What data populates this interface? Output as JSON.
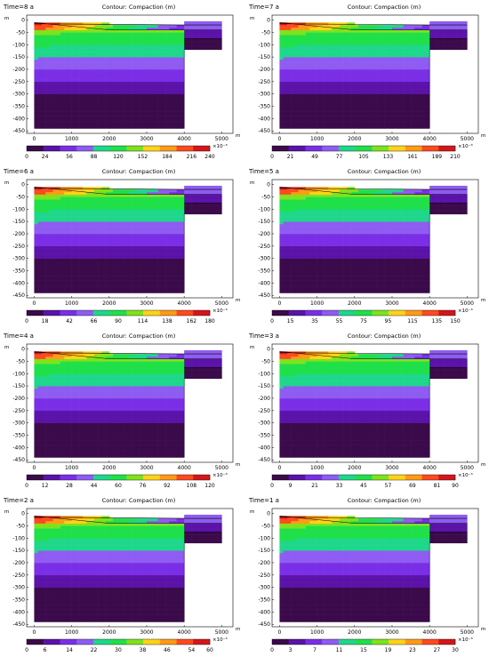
{
  "chart_data": [
    {
      "type": "heatmap",
      "time_label": "Time=8 a",
      "title": "Contour: Compaction (m)",
      "xlabel": "m",
      "ylabel": "m",
      "x_ticks": [
        "0",
        "1000",
        "2000",
        "3000",
        "4000",
        "5000"
      ],
      "y_ticks": [
        "-450",
        "-400",
        "-350",
        "-300",
        "-250",
        "-200",
        "-150",
        "-100",
        "-50",
        "0"
      ],
      "xlim": [
        -200,
        5300
      ],
      "ylim": [
        -460,
        20
      ],
      "colorbar_ticks": [
        "0",
        "24",
        "56",
        "88",
        "120",
        "152",
        "184",
        "216",
        "240"
      ],
      "colorbar_exponent": "×10⁻³",
      "colorbar_range": [
        0,
        0.24
      ]
    },
    {
      "type": "heatmap",
      "time_label": "Time=7 a",
      "title": "Contour: Compaction (m)",
      "xlabel": "m",
      "ylabel": "m",
      "x_ticks": [
        "0",
        "1000",
        "2000",
        "3000",
        "4000",
        "5000"
      ],
      "y_ticks": [
        "-450",
        "-400",
        "-350",
        "-300",
        "-250",
        "-200",
        "-150",
        "-100",
        "-50",
        "0"
      ],
      "xlim": [
        -200,
        5300
      ],
      "ylim": [
        -460,
        20
      ],
      "colorbar_ticks": [
        "0",
        "21",
        "49",
        "77",
        "105",
        "133",
        "161",
        "189",
        "210"
      ],
      "colorbar_exponent": "×10⁻³",
      "colorbar_range": [
        0,
        0.21
      ]
    },
    {
      "type": "heatmap",
      "time_label": "Time=6 a",
      "title": "Contour: Compaction (m)",
      "xlabel": "m",
      "ylabel": "m",
      "x_ticks": [
        "0",
        "1000",
        "2000",
        "3000",
        "4000",
        "5000"
      ],
      "y_ticks": [
        "-450",
        "-400",
        "-350",
        "-300",
        "-250",
        "-200",
        "-150",
        "-100",
        "-50",
        "0"
      ],
      "xlim": [
        -200,
        5300
      ],
      "ylim": [
        -460,
        20
      ],
      "colorbar_ticks": [
        "0",
        "18",
        "42",
        "66",
        "90",
        "114",
        "138",
        "162",
        "180"
      ],
      "colorbar_exponent": "×10⁻³",
      "colorbar_range": [
        0,
        0.18
      ]
    },
    {
      "type": "heatmap",
      "time_label": "Time=5 a",
      "title": "Contour: Compaction (m)",
      "xlabel": "m",
      "ylabel": "m",
      "x_ticks": [
        "0",
        "1000",
        "2000",
        "3000",
        "4000",
        "5000"
      ],
      "y_ticks": [
        "-450",
        "-400",
        "-350",
        "-300",
        "-250",
        "-200",
        "-150",
        "-100",
        "-50",
        "0"
      ],
      "xlim": [
        -200,
        5300
      ],
      "ylim": [
        -460,
        20
      ],
      "colorbar_ticks": [
        "0",
        "15",
        "35",
        "55",
        "75",
        "95",
        "115",
        "135",
        "150"
      ],
      "colorbar_exponent": "×10⁻³",
      "colorbar_range": [
        0,
        0.15
      ]
    },
    {
      "type": "heatmap",
      "time_label": "Time=4 a",
      "title": "Contour: Compaction (m)",
      "xlabel": "m",
      "ylabel": "m",
      "x_ticks": [
        "0",
        "1000",
        "2000",
        "3000",
        "4000",
        "5000"
      ],
      "y_ticks": [
        "-450",
        "-400",
        "-350",
        "-300",
        "-250",
        "-200",
        "-150",
        "-100",
        "-50",
        "0"
      ],
      "xlim": [
        -200,
        5300
      ],
      "ylim": [
        -460,
        20
      ],
      "colorbar_ticks": [
        "0",
        "12",
        "28",
        "44",
        "60",
        "76",
        "92",
        "108",
        "120"
      ],
      "colorbar_exponent": "×10⁻³",
      "colorbar_range": [
        0,
        0.12
      ]
    },
    {
      "type": "heatmap",
      "time_label": "Time=3 a",
      "title": "Contour: Compaction (m)",
      "xlabel": "m",
      "ylabel": "m",
      "x_ticks": [
        "0",
        "1000",
        "2000",
        "3000",
        "4000",
        "5000"
      ],
      "y_ticks": [
        "-450",
        "-400",
        "-350",
        "-300",
        "-250",
        "-200",
        "-150",
        "-100",
        "-50",
        "0"
      ],
      "xlim": [
        -200,
        5300
      ],
      "ylim": [
        -460,
        20
      ],
      "colorbar_ticks": [
        "0",
        "9",
        "21",
        "33",
        "45",
        "57",
        "69",
        "81",
        "90"
      ],
      "colorbar_exponent": "×10⁻³",
      "colorbar_range": [
        0,
        0.09
      ]
    },
    {
      "type": "heatmap",
      "time_label": "Time=2 a",
      "title": "Contour: Compaction (m)",
      "xlabel": "m",
      "ylabel": "m",
      "x_ticks": [
        "0",
        "1000",
        "2000",
        "3000",
        "4000",
        "5000"
      ],
      "y_ticks": [
        "-450",
        "-400",
        "-350",
        "-300",
        "-250",
        "-200",
        "-150",
        "-100",
        "-50",
        "0"
      ],
      "xlim": [
        -200,
        5300
      ],
      "ylim": [
        -460,
        20
      ],
      "colorbar_ticks": [
        "0",
        "6",
        "14",
        "22",
        "30",
        "38",
        "46",
        "54",
        "60"
      ],
      "colorbar_exponent": "×10⁻³",
      "colorbar_range": [
        0,
        0.06
      ]
    },
    {
      "type": "heatmap",
      "time_label": "Time=1 a",
      "title": "Contour: Compaction (m)",
      "xlabel": "m",
      "ylabel": "m",
      "x_ticks": [
        "0",
        "1000",
        "2000",
        "3000",
        "4000",
        "5000"
      ],
      "y_ticks": [
        "-450",
        "-400",
        "-350",
        "-300",
        "-250",
        "-200",
        "-150",
        "-100",
        "-50",
        "0"
      ],
      "xlim": [
        -200,
        5300
      ],
      "ylim": [
        -460,
        20
      ],
      "colorbar_ticks": [
        "0",
        "3",
        "7",
        "11",
        "15",
        "19",
        "23",
        "27",
        "30"
      ],
      "colorbar_exponent": "×10⁻³",
      "colorbar_range": [
        0,
        0.03
      ]
    }
  ],
  "colormap": [
    "#3b0a4a",
    "#5b12a8",
    "#7a2fe6",
    "#8f5cf2",
    "#1fd78a",
    "#20e04a",
    "#7ee21c",
    "#ffd21a",
    "#ff9a16",
    "#ff4a1f",
    "#d4161a"
  ]
}
